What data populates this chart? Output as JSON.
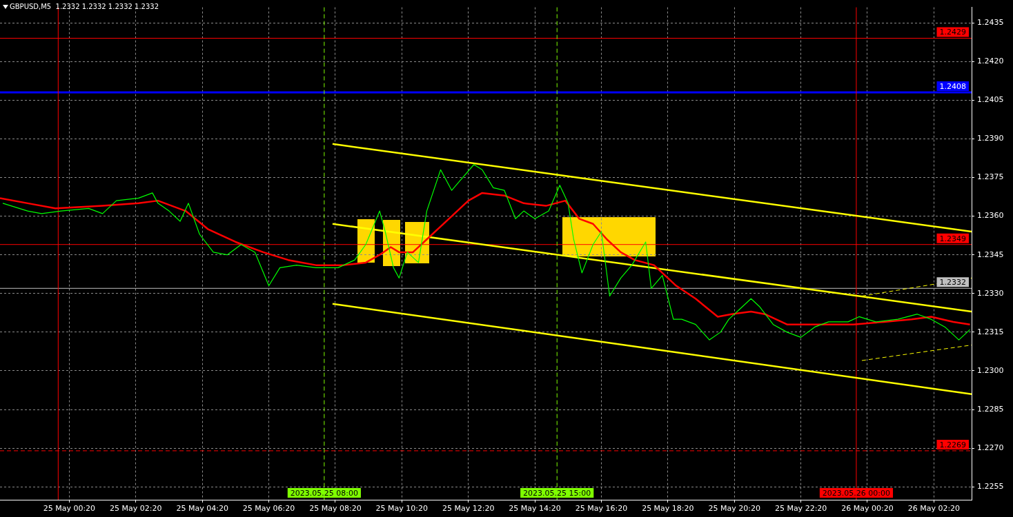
{
  "chart_data": {
    "type": "line",
    "title": "GBPUSD,M5  1.2332 1.2332 1.2332 1.2332",
    "marker": "none",
    "grid": true,
    "xlim": [
      "2023-05-24T22:15",
      "2023-05-26T03:28"
    ],
    "xticks": [
      {
        "value": "2023-05-25T00:20",
        "label": "25 May 00:20"
      },
      {
        "value": "2023-05-25T02:20",
        "label": "25 May 02:20"
      },
      {
        "value": "2023-05-25T04:20",
        "label": "25 May 04:20"
      },
      {
        "value": "2023-05-25T06:20",
        "label": "25 May 06:20"
      },
      {
        "value": "2023-05-25T08:20",
        "label": "25 May 08:20"
      },
      {
        "value": "2023-05-25T10:20",
        "label": "25 May 10:20"
      },
      {
        "value": "2023-05-25T12:20",
        "label": "25 May 12:20"
      },
      {
        "value": "2023-05-25T14:20",
        "label": "25 May 14:20"
      },
      {
        "value": "2023-05-25T16:20",
        "label": "25 May 16:20"
      },
      {
        "value": "2023-05-25T18:20",
        "label": "25 May 18:20"
      },
      {
        "value": "2023-05-25T20:20",
        "label": "25 May 20:20"
      },
      {
        "value": "2023-05-25T22:20",
        "label": "25 May 22:20"
      },
      {
        "value": "2023-05-26T00:20",
        "label": "26 May 00:20"
      },
      {
        "value": "2023-05-26T02:20",
        "label": "26 May 02:20"
      }
    ],
    "ylim": [
      1.225,
      1.2441
    ],
    "yticks": [
      1.2255,
      {
        "value": 1.227,
        "label": "1.2270"
      },
      1.2285,
      {
        "value": 1.23,
        "label": "1.2300"
      },
      1.2315,
      {
        "value": 1.233,
        "label": "1.2330"
      },
      1.2345,
      {
        "value": 1.236,
        "label": "1.2360"
      },
      1.2375,
      {
        "value": 1.239,
        "label": "1.2390"
      },
      1.2405,
      {
        "value": 1.242,
        "label": "1.2420"
      },
      1.2435
    ],
    "ref_lines": [
      {
        "axis": "y",
        "value": 1.2429,
        "label": "1.2429",
        "color": "#ff0000"
      },
      {
        "axis": "y",
        "value": 1.2408,
        "label": "1.2408",
        "color": "#0000ff"
      },
      {
        "axis": "y",
        "value": 1.2349,
        "label": "1.2349",
        "color": "#ff0000"
      },
      {
        "axis": "y",
        "value": 1.2332,
        "label": "1.2332",
        "color": "#c0c0c0"
      },
      {
        "axis": "y",
        "value": 1.2269,
        "label": "1.2269",
        "color": "#ff0000",
        "line_style": "dashed"
      },
      {
        "axis": "x",
        "value": "2023-05-25T00:00",
        "label": null,
        "color": "#ff0000"
      },
      {
        "axis": "x",
        "value": "2023-05-25T08:00",
        "label": "2023.05.25 08:00",
        "color": "#7fff00",
        "line_style": "dashed"
      },
      {
        "axis": "x",
        "value": "2023-05-25T15:00",
        "label": "2023.05.25 15:00",
        "color": "#7fff00",
        "line_style": "dashed"
      },
      {
        "axis": "x",
        "value": "2023-05-26T00:00",
        "label": "2023.05.26 00:00",
        "color": "#ff0000"
      }
    ],
    "series": [
      {
        "color": "#00ff00",
        "line_style": "solid",
        "x": [
          "2023-05-24T22:20",
          "2023-05-24T23:05",
          "2023-05-24T23:30",
          "2023-05-25T00:05",
          "2023-05-25T00:55",
          "2023-05-25T01:20",
          "2023-05-25T01:45",
          "2023-05-25T02:25",
          "2023-05-25T02:50",
          "2023-05-25T03:00",
          "2023-05-25T03:20",
          "2023-05-25T03:40",
          "2023-05-25T03:55",
          "2023-05-25T04:15",
          "2023-05-25T04:40",
          "2023-05-25T05:05",
          "2023-05-25T05:30",
          "2023-05-25T05:55",
          "2023-05-25T06:20",
          "2023-05-25T06:40",
          "2023-05-25T07:10",
          "2023-05-25T07:45",
          "2023-05-25T08:25",
          "2023-05-25T08:55",
          "2023-05-25T09:15",
          "2023-05-25T09:40",
          "2023-05-25T09:50",
          "2023-05-25T10:05",
          "2023-05-25T10:15",
          "2023-05-25T10:30",
          "2023-05-25T10:50",
          "2023-05-25T11:05",
          "2023-05-25T11:30",
          "2023-05-25T11:50",
          "2023-05-25T12:10",
          "2023-05-25T12:30",
          "2023-05-25T12:45",
          "2023-05-25T13:05",
          "2023-05-25T13:25",
          "2023-05-25T13:45",
          "2023-05-25T14:00",
          "2023-05-25T14:20",
          "2023-05-25T14:45",
          "2023-05-25T15:05",
          "2023-05-25T15:20",
          "2023-05-25T15:30",
          "2023-05-25T15:45",
          "2023-05-25T16:05",
          "2023-05-25T16:20",
          "2023-05-25T16:35",
          "2023-05-25T16:55",
          "2023-05-25T17:15",
          "2023-05-25T17:40",
          "2023-05-25T17:50",
          "2023-05-25T18:10",
          "2023-05-25T18:30",
          "2023-05-25T18:45",
          "2023-05-25T19:10",
          "2023-05-25T19:35",
          "2023-05-25T19:55",
          "2023-05-25T20:10",
          "2023-05-25T20:35",
          "2023-05-25T20:50",
          "2023-05-25T21:05",
          "2023-05-25T21:30",
          "2023-05-25T21:55",
          "2023-05-25T22:20",
          "2023-05-25T22:45",
          "2023-05-25T23:10",
          "2023-05-25T23:45",
          "2023-05-26T00:05",
          "2023-05-26T00:35",
          "2023-05-26T01:15",
          "2023-05-26T01:50",
          "2023-05-26T02:15",
          "2023-05-26T02:40",
          "2023-05-26T03:05",
          "2023-05-26T03:25"
        ],
        "values": [
          1.2365,
          1.2362,
          1.2361,
          1.2362,
          1.2363,
          1.2361,
          1.2366,
          1.2367,
          1.2369,
          1.2365,
          1.2362,
          1.2358,
          1.2365,
          1.2353,
          1.2346,
          1.2345,
          1.2349,
          1.2346,
          1.2333,
          1.234,
          1.2341,
          1.234,
          1.234,
          1.2343,
          1.2349,
          1.2362,
          1.2354,
          1.234,
          1.2336,
          1.2346,
          1.2342,
          1.2362,
          1.2378,
          1.237,
          1.2375,
          1.238,
          1.2378,
          1.2371,
          1.237,
          1.2359,
          1.2362,
          1.2359,
          1.2362,
          1.2372,
          1.2365,
          1.2351,
          1.2338,
          1.2349,
          1.2354,
          1.2329,
          1.2336,
          1.2341,
          1.235,
          1.2332,
          1.2337,
          1.232,
          1.232,
          1.2318,
          1.2312,
          1.2315,
          1.232,
          1.2325,
          1.2328,
          1.2325,
          1.2318,
          1.2315,
          1.2313,
          1.2317,
          1.2319,
          1.2319,
          1.2321,
          1.2319,
          1.232,
          1.2322,
          1.232,
          1.2317,
          1.2312,
          1.2316
        ]
      },
      {
        "color": "#ff0000",
        "line_style": "solid",
        "x": [
          "2023-05-24T22:15",
          "2023-05-24T23:05",
          "2023-05-24T23:55",
          "2023-05-25T01:20",
          "2023-05-25T02:25",
          "2023-05-25T03:00",
          "2023-05-25T03:50",
          "2023-05-25T04:30",
          "2023-05-25T05:20",
          "2023-05-25T06:10",
          "2023-05-25T06:55",
          "2023-05-25T07:45",
          "2023-05-25T08:35",
          "2023-05-25T09:15",
          "2023-05-25T09:40",
          "2023-05-25T10:00",
          "2023-05-25T10:15",
          "2023-05-25T10:40",
          "2023-05-25T11:05",
          "2023-05-25T11:45",
          "2023-05-25T12:20",
          "2023-05-25T12:45",
          "2023-05-25T13:25",
          "2023-05-25T14:00",
          "2023-05-25T14:40",
          "2023-05-25T15:15",
          "2023-05-25T15:40",
          "2023-05-25T16:05",
          "2023-05-25T16:30",
          "2023-05-25T16:55",
          "2023-05-25T17:20",
          "2023-05-25T17:55",
          "2023-05-25T18:35",
          "2023-05-25T19:10",
          "2023-05-25T19:50",
          "2023-05-25T20:15",
          "2023-05-25T20:50",
          "2023-05-25T21:15",
          "2023-05-25T21:55",
          "2023-05-25T22:30",
          "2023-05-25T23:10",
          "2023-05-25T23:55",
          "2023-05-26T00:50",
          "2023-05-26T01:40",
          "2023-05-26T02:15",
          "2023-05-26T02:55",
          "2023-05-26T03:25"
        ],
        "values": [
          1.2367,
          1.2365,
          1.2363,
          1.2364,
          1.2365,
          1.2366,
          1.2362,
          1.2355,
          1.235,
          1.2346,
          1.2343,
          1.2341,
          1.2341,
          1.2342,
          1.2345,
          1.2348,
          1.2346,
          1.2346,
          1.2351,
          1.2359,
          1.2366,
          1.2369,
          1.2368,
          1.2365,
          1.2364,
          1.2366,
          1.2359,
          1.2357,
          1.2351,
          1.2346,
          1.2343,
          1.2341,
          1.2333,
          1.2328,
          1.2321,
          1.2322,
          1.2323,
          1.2322,
          1.2318,
          1.2318,
          1.2318,
          1.2318,
          1.2319,
          1.232,
          1.2321,
          1.2319,
          1.2318
        ]
      },
      {
        "color": "#ffff00",
        "line_style": "solid",
        "x": [
          "2023-05-25T08:15",
          "2023-05-26T03:28"
        ],
        "values": [
          1.2388,
          1.2354
        ]
      },
      {
        "color": "#ffff00",
        "line_style": "solid",
        "x": [
          "2023-05-25T08:15",
          "2023-05-26T03:28"
        ],
        "values": [
          1.2357,
          1.2323
        ]
      },
      {
        "color": "#ffff00",
        "line_style": "solid",
        "x": [
          "2023-05-25T08:15",
          "2023-05-26T03:28"
        ],
        "values": [
          1.2326,
          1.2291
        ]
      },
      {
        "color": "#ffff00",
        "line_style": "dashed",
        "x": [
          "2023-05-26T00:10",
          "2023-05-26T03:28"
        ],
        "values": [
          1.2329,
          1.2336
        ]
      },
      {
        "color": "#ffff00",
        "line_style": "dashed",
        "x": [
          "2023-05-26T00:10",
          "2023-05-26T03:28"
        ],
        "values": [
          1.2304,
          1.231
        ]
      }
    ]
  }
}
